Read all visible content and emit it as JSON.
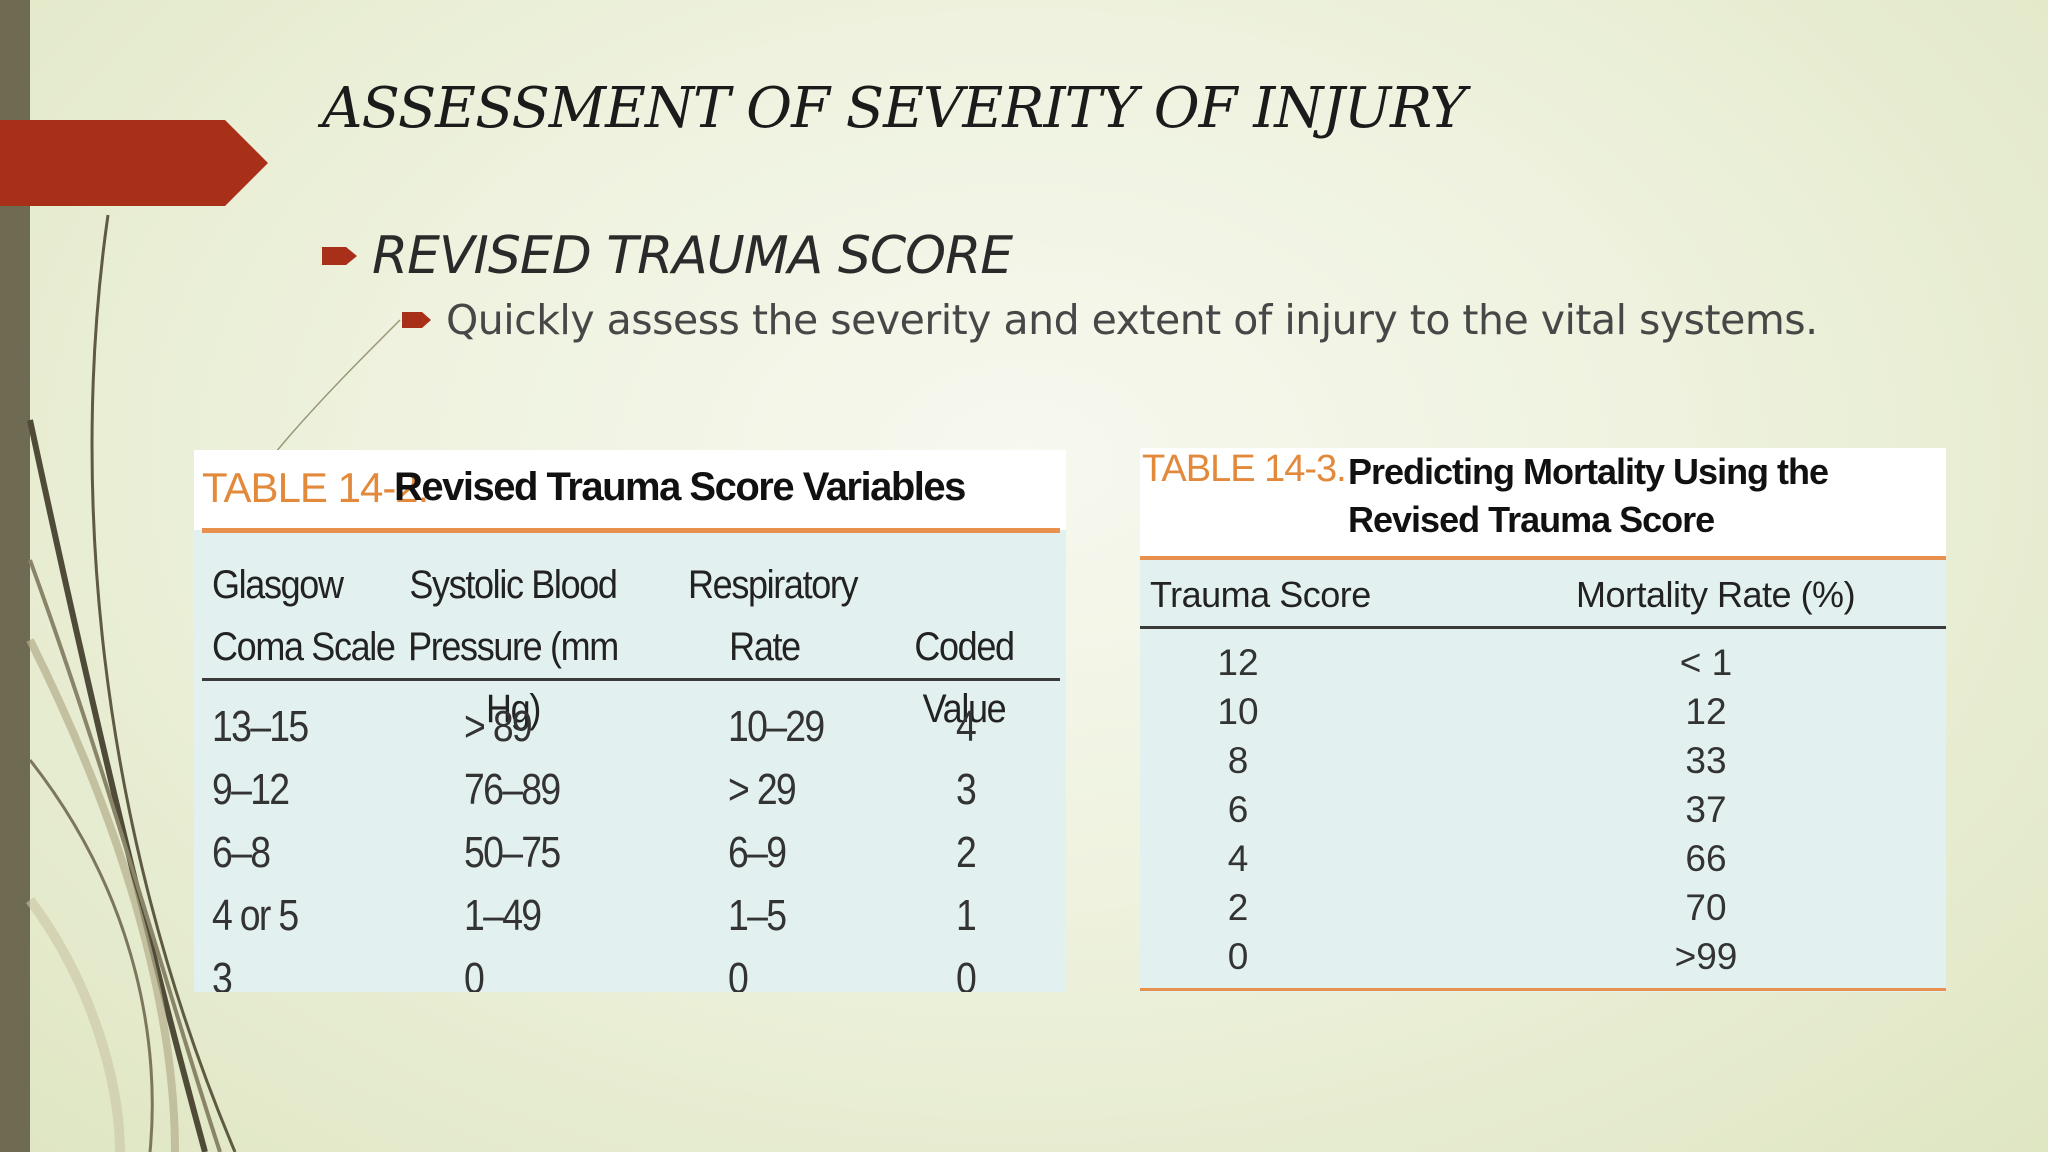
{
  "slide": {
    "title": "ASSESSMENT OF SEVERITY OF INJURY",
    "bullet_main": "REVISED TRAUMA SCORE",
    "bullet_sub": "Quickly assess the severity and extent of injury to the vital systems.",
    "accent_color": "#a82f18"
  },
  "table_rts_variables": {
    "label": "TABLE 14-2.",
    "title": "Revised Trauma Score Variables",
    "headers": [
      [
        "Glasgow",
        "Coma Scale"
      ],
      [
        "Systolic Blood",
        "Pressure (mm Hg)"
      ],
      [
        "Respiratory",
        "Rate"
      ],
      [
        "",
        "Coded Value"
      ]
    ],
    "rows": [
      [
        "13–15",
        "> 89",
        "10–29",
        "4"
      ],
      [
        "9–12",
        "76–89",
        "> 29",
        "3"
      ],
      [
        "6–8",
        "50–75",
        "6–9",
        "2"
      ],
      [
        "4 or 5",
        "1–49",
        "1–5",
        "1"
      ],
      [
        "3",
        "0",
        "0",
        "0"
      ]
    ]
  },
  "table_mortality": {
    "label": "TABLE 14-3.",
    "title": "Predicting Mortality Using the Revised Trauma Score",
    "headers": [
      "Trauma Score",
      "Mortality Rate (%)"
    ],
    "trauma_scores": [
      "12",
      "10",
      "8",
      "6",
      "4",
      "2",
      "0"
    ],
    "mortality_rates": [
      "< 1",
      "12",
      "33",
      "37",
      "66",
      "70",
      ">99"
    ]
  }
}
